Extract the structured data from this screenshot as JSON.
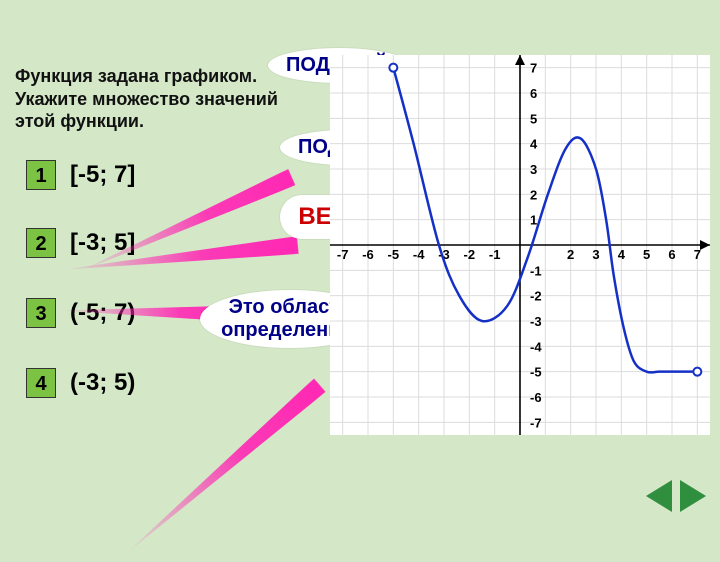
{
  "question": "Функция задана графиком. Укажите множество значений этой функции.",
  "options": [
    {
      "num": "1",
      "label": "[-5; 7]"
    },
    {
      "num": "2",
      "label": "[-3; 5]"
    },
    {
      "num": "3",
      "label": "(-5; 7)"
    },
    {
      "num": "4",
      "label": "(-3; 5)"
    }
  ],
  "callouts": {
    "c1": "ПОДУМАЙ!",
    "c2": "ПОДУМАЙ!",
    "c3": "ВЕРНО!",
    "c4": "Это область определения!"
  },
  "chart": {
    "type": "line",
    "background": "#ffffff",
    "grid_color": "#dcdcdc",
    "axis_color": "#000000",
    "xlim": [
      -7.5,
      7.5
    ],
    "ylim": [
      -7.5,
      7.5
    ],
    "tick_step": 1,
    "xtick_labels": [
      "-7",
      "-6",
      "-5",
      "-4",
      "-3",
      "-2",
      "-1",
      "",
      "2",
      "3",
      "4",
      "5",
      "6",
      "7"
    ],
    "ytick_labels_pos": [
      "7",
      "6",
      "5",
      "4",
      "3",
      "2",
      "1"
    ],
    "ytick_labels_neg": [
      "-1",
      "-2",
      "-3",
      "-4",
      "-5",
      "-6",
      "-7"
    ],
    "curve_color": "#1530c7",
    "curve_width": 2.5,
    "endpoint_style": "open",
    "endpoint_radius": 4,
    "points": [
      [
        -5,
        7
      ],
      [
        -4.2,
        4.0
      ],
      [
        -3.2,
        0.0
      ],
      [
        -2.4,
        -2.0
      ],
      [
        -1.5,
        -3.0
      ],
      [
        -0.5,
        -2.4
      ],
      [
        0.3,
        -0.5
      ],
      [
        1.1,
        2.0
      ],
      [
        1.8,
        3.8
      ],
      [
        2.4,
        4.2
      ],
      [
        3.0,
        3.0
      ],
      [
        3.4,
        1.0
      ],
      [
        3.7,
        -1.2
      ],
      [
        4.1,
        -3.3
      ],
      [
        4.5,
        -4.6
      ],
      [
        5.0,
        -5.0
      ],
      [
        5.5,
        -5.0
      ],
      [
        6.2,
        -5.0
      ],
      [
        7.0,
        -5.0
      ]
    ]
  },
  "rays": [
    {
      "from_opt": 0,
      "to_co": 0
    },
    {
      "from_opt": 1,
      "to_co": 2
    },
    {
      "from_opt": 2,
      "to_co": 3
    },
    {
      "from_opt": 3,
      "to_co": 1
    }
  ],
  "colors": {
    "page_bg": "#d4e8c8",
    "option_btn": "#7cc243",
    "nav_btn": "#2f8f3f"
  }
}
